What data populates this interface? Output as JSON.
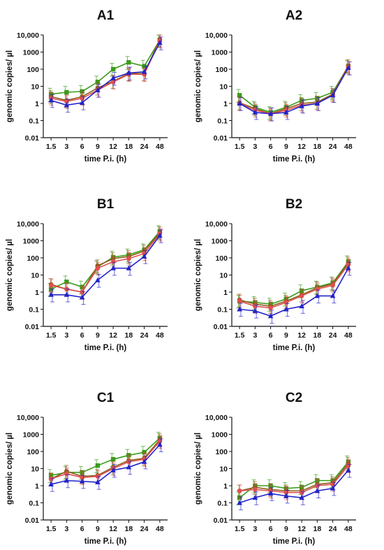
{
  "chart_data": [
    {
      "type": "line",
      "title": "A1",
      "xlabel": "time P.i. (h)",
      "ylabel": "genomic copies/ µl",
      "yscale": "log",
      "ylim": [
        0.01,
        10000
      ],
      "yticks": [
        "0.01",
        "0.1",
        "1",
        "10",
        "100",
        "1000",
        "10,000"
      ],
      "categories": [
        "1.5",
        "3",
        "6",
        "9",
        "12",
        "18",
        "24",
        "48"
      ],
      "series": [
        {
          "color": "#3a9b1a",
          "marker": "square",
          "values": [
            3.5,
            4.5,
            5,
            18,
            100,
            250,
            150,
            5000
          ]
        },
        {
          "color": "#8b5e1a",
          "marker": "circle",
          "values": [
            2.5,
            1.5,
            2.5,
            8,
            20,
            55,
            55,
            5500
          ]
        },
        {
          "color": "#e05050",
          "marker": "circle",
          "values": [
            2,
            1.3,
            2,
            6,
            18,
            50,
            50,
            4500
          ]
        },
        {
          "color": "#2323c8",
          "marker": "triangle",
          "values": [
            1.5,
            0.8,
            1.1,
            6,
            30,
            60,
            70,
            3500
          ]
        }
      ]
    },
    {
      "type": "line",
      "title": "A2",
      "xlabel": "time P.i. (h)",
      "ylabel": "genomic copies/ µl",
      "yscale": "log",
      "ylim": [
        0.01,
        10000
      ],
      "yticks": [
        "0.01",
        "0.1",
        "1",
        "10",
        "100",
        "1000",
        "10,000"
      ],
      "categories": [
        "1.5",
        "3",
        "6",
        "9",
        "12",
        "18",
        "24",
        "48"
      ],
      "series": [
        {
          "color": "#3a9b1a",
          "marker": "square",
          "values": [
            3,
            0.6,
            0.3,
            0.6,
            1.5,
            2,
            4.5,
            150
          ]
        },
        {
          "color": "#8b5e1a",
          "marker": "circle",
          "values": [
            1.1,
            0.5,
            0.25,
            0.5,
            1,
            1.2,
            3.5,
            160
          ]
        },
        {
          "color": "#e05050",
          "marker": "circle",
          "values": [
            1,
            0.4,
            0.25,
            0.4,
            0.8,
            1,
            3,
            130
          ]
        },
        {
          "color": "#2323c8",
          "marker": "triangle",
          "values": [
            1,
            0.3,
            0.25,
            0.3,
            0.7,
            1,
            3,
            120
          ]
        }
      ]
    },
    {
      "type": "line",
      "title": "B1",
      "xlabel": "time P.i. (h)",
      "ylabel": "genomic copies/ µl",
      "yscale": "log",
      "ylim": [
        0.01,
        10000
      ],
      "yticks": [
        "0.01",
        "0.1",
        "1",
        "10",
        "100",
        "1000",
        "10,000"
      ],
      "categories": [
        "1.5",
        "3",
        "6",
        "9",
        "12",
        "18",
        "24",
        "48"
      ],
      "series": [
        {
          "color": "#3a9b1a",
          "marker": "square",
          "values": [
            1.5,
            4,
            2,
            30,
            110,
            150,
            300,
            3500
          ]
        },
        {
          "color": "#8b5e1a",
          "marker": "circle",
          "values": [
            2.8,
            1.5,
            1,
            35,
            90,
            120,
            250,
            3000
          ]
        },
        {
          "color": "#e05050",
          "marker": "circle",
          "values": [
            2.5,
            1.5,
            1,
            25,
            60,
            90,
            180,
            2500
          ]
        },
        {
          "color": "#2323c8",
          "marker": "triangle",
          "values": [
            0.7,
            0.7,
            0.5,
            5,
            25,
            25,
            120,
            2000
          ]
        }
      ]
    },
    {
      "type": "line",
      "title": "B2",
      "xlabel": "time P.i. (h)",
      "ylabel": "genomic copies/ µl",
      "yscale": "log",
      "ylim": [
        0.01,
        10000
      ],
      "yticks": [
        "0.01",
        "0.1",
        "1",
        "10",
        "100",
        "1000",
        "10,000"
      ],
      "categories": [
        "1.5",
        "3",
        "6",
        "9",
        "12",
        "18",
        "24",
        "48"
      ],
      "series": [
        {
          "color": "#3a9b1a",
          "marker": "square",
          "values": [
            0.3,
            0.25,
            0.2,
            0.4,
            1.2,
            2,
            3.5,
            60
          ]
        },
        {
          "color": "#8b5e1a",
          "marker": "circle",
          "values": [
            0.35,
            0.2,
            0.15,
            0.3,
            0.7,
            1.8,
            3,
            50
          ]
        },
        {
          "color": "#e05050",
          "marker": "circle",
          "values": [
            0.3,
            0.15,
            0.12,
            0.25,
            0.6,
            1.5,
            2.5,
            40
          ]
        },
        {
          "color": "#2323c8",
          "marker": "triangle",
          "values": [
            0.1,
            0.08,
            0.04,
            0.1,
            0.15,
            0.6,
            0.6,
            25
          ]
        }
      ]
    },
    {
      "type": "line",
      "title": "C1",
      "xlabel": "time P.i. (h)",
      "ylabel": "genomic copies/ µl",
      "yscale": "log",
      "ylim": [
        0.01,
        10000
      ],
      "yticks": [
        "0.01",
        "0.1",
        "1",
        "10",
        "100",
        "1000",
        "10,000"
      ],
      "categories": [
        "1.5",
        "3",
        "6",
        "9",
        "12",
        "18",
        "24",
        "48"
      ],
      "series": [
        {
          "color": "#3a9b1a",
          "marker": "square",
          "values": [
            4,
            6,
            6,
            15,
            35,
            60,
            90,
            600
          ]
        },
        {
          "color": "#8b5e1a",
          "marker": "circle",
          "values": [
            2.5,
            7,
            3.5,
            4,
            12,
            30,
            40,
            500
          ]
        },
        {
          "color": "#e05050",
          "marker": "circle",
          "values": [
            2.5,
            5,
            3,
            3.5,
            10,
            25,
            35,
            400
          ]
        },
        {
          "color": "#2323c8",
          "marker": "triangle",
          "values": [
            1.2,
            2,
            1.8,
            1.6,
            8,
            12,
            25,
            250
          ]
        }
      ]
    },
    {
      "type": "line",
      "title": "C2",
      "xlabel": "time P.i. (h)",
      "ylabel": "genomic copies/ µl",
      "yscale": "log",
      "ylim": [
        0.01,
        10000
      ],
      "yticks": [
        "0.01",
        "0.1",
        "1",
        "10",
        "100",
        "1000",
        "10,000"
      ],
      "categories": [
        "1.5",
        "3",
        "6",
        "9",
        "12",
        "18",
        "24",
        "48"
      ],
      "series": [
        {
          "color": "#3a9b1a",
          "marker": "square",
          "values": [
            0.2,
            1,
            1,
            0.7,
            0.8,
            2,
            2,
            25
          ]
        },
        {
          "color": "#8b5e1a",
          "marker": "circle",
          "values": [
            0.5,
            0.8,
            0.6,
            0.5,
            0.5,
            1.2,
            1.5,
            20
          ]
        },
        {
          "color": "#e05050",
          "marker": "circle",
          "values": [
            0.5,
            0.6,
            0.5,
            0.4,
            0.4,
            1,
            1.2,
            15
          ]
        },
        {
          "color": "#2323c8",
          "marker": "triangle",
          "values": [
            0.1,
            0.2,
            0.35,
            0.25,
            0.2,
            0.5,
            0.7,
            8
          ]
        }
      ]
    }
  ]
}
